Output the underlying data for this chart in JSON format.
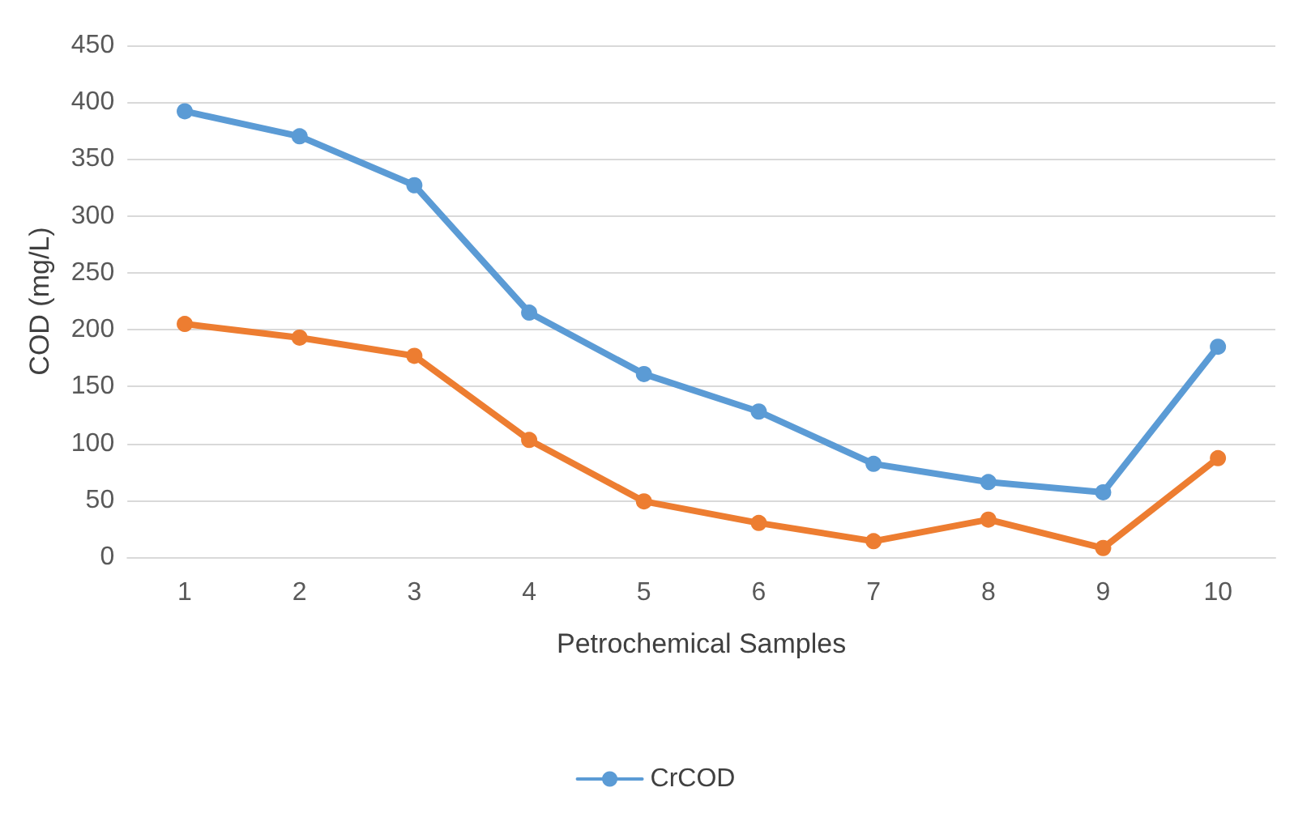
{
  "chart_data": {
    "type": "line",
    "xlabel": "Petrochemical Samples",
    "ylabel": "COD (mg/L)",
    "categories": [
      "1",
      "2",
      "3",
      "4",
      "5",
      "6",
      "7",
      "8",
      "9",
      "10"
    ],
    "series": [
      {
        "name": "CrCOD",
        "color": "#5b9bd5",
        "values": [
          392,
          370,
          327,
          215,
          161,
          128,
          82,
          66,
          57,
          185
        ]
      },
      {
        "color": "#ed7d31",
        "values": [
          205,
          193,
          177,
          103,
          49,
          30,
          14,
          33,
          8,
          87
        ]
      }
    ],
    "ylim": [
      0,
      450
    ],
    "yticks": [
      0,
      50,
      100,
      150,
      200,
      250,
      300,
      350,
      400,
      450
    ],
    "grid": "y",
    "legend": "bottom",
    "marker": "circle",
    "line_style": "solid"
  }
}
